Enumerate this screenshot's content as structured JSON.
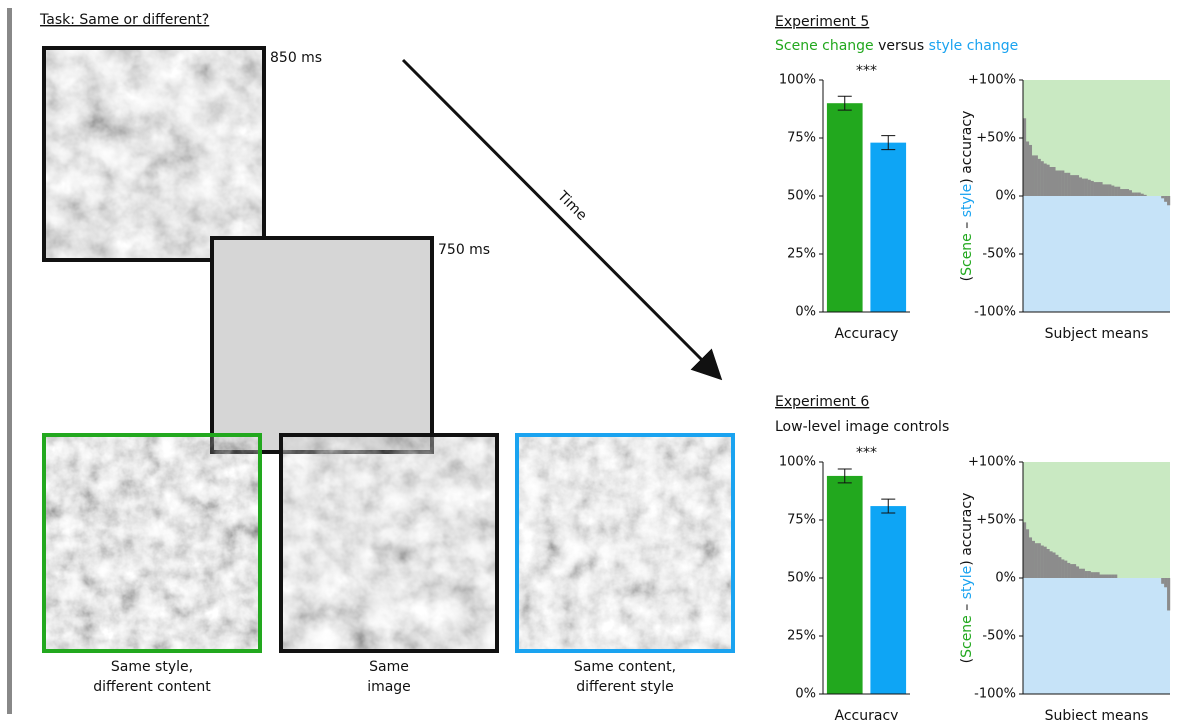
{
  "diagram": {
    "task": "Task: Same or different?",
    "durations": [
      "850 ms",
      "750 ms"
    ],
    "time_label": "Time",
    "captions": [
      [
        "Same style,",
        "different content"
      ],
      [
        "Same",
        "image"
      ],
      [
        "Same content,",
        "different style"
      ]
    ],
    "caption_colors": [
      "#22a81e",
      "#111111",
      "#1aa3f0"
    ]
  },
  "panels": [
    {
      "title": "Experiment 5",
      "subtitle": [
        {
          "text": "Scene change",
          "color": "#22a81e"
        },
        {
          "text": " versus ",
          "color": "#111111"
        },
        {
          "text": "style change",
          "color": "#1aa3f0"
        }
      ]
    },
    {
      "title": "Experiment 6",
      "subtitle": [
        {
          "text": "Low-level image controls",
          "color": "#111111"
        }
      ]
    }
  ],
  "chart_data": [
    {
      "type": "bar",
      "xlabel": "Accuracy",
      "annotation": "***",
      "categories": [
        null,
        null
      ],
      "values": [
        90,
        73
      ],
      "errors": [
        3,
        3
      ],
      "colors": [
        "#22a81e",
        "#0ea5f5"
      ],
      "ylim": [
        0,
        100
      ],
      "yticks": [
        {
          "value": 0,
          "label": "0%"
        },
        {
          "value": 25,
          "label": "25%"
        },
        {
          "value": 50,
          "label": "50%"
        },
        {
          "value": 75,
          "label": "75%"
        },
        {
          "value": 100,
          "label": "100%"
        }
      ]
    },
    {
      "type": "bar",
      "xlabel": "Subject means",
      "ylabel": [
        {
          "text": "(",
          "color": "#111111"
        },
        {
          "text": "Scene",
          "color": "#22a81e"
        },
        {
          "text": " – ",
          "color": "#111111"
        },
        {
          "text": "style",
          "color": "#1aa3f0"
        },
        {
          "text": ") accuracy",
          "color": "#111111"
        }
      ],
      "values": [
        67,
        47,
        44,
        35,
        35,
        32,
        30,
        28,
        27,
        25,
        25,
        22,
        22,
        22,
        20,
        20,
        18,
        18,
        18,
        16,
        15,
        15,
        14,
        13,
        12,
        12,
        12,
        10,
        10,
        10,
        9,
        8,
        8,
        6,
        6,
        6,
        5,
        3,
        3,
        3,
        2,
        1,
        0,
        0,
        0,
        0,
        0,
        -2,
        -5,
        -8
      ],
      "color": "#8c8c8c",
      "background_above": "#c9e9c2",
      "background_below": "#c6e3f8",
      "ylim": [
        -100,
        100
      ],
      "yticks": [
        {
          "value": -100,
          "label": "-100%"
        },
        {
          "value": -50,
          "label": "-50%"
        },
        {
          "value": 0,
          "label": "0%"
        },
        {
          "value": 50,
          "label": "+50%"
        },
        {
          "value": 100,
          "label": "+100%"
        }
      ]
    },
    {
      "type": "bar",
      "xlabel": "Accuracy",
      "annotation": "***",
      "categories": [
        null,
        null
      ],
      "values": [
        94,
        81
      ],
      "errors": [
        3,
        3
      ],
      "colors": [
        "#22a81e",
        "#0ea5f5"
      ],
      "ylim": [
        0,
        100
      ],
      "yticks": [
        {
          "value": 0,
          "label": "0%"
        },
        {
          "value": 25,
          "label": "25%"
        },
        {
          "value": 50,
          "label": "50%"
        },
        {
          "value": 75,
          "label": "75%"
        },
        {
          "value": 100,
          "label": "100%"
        }
      ]
    },
    {
      "type": "bar",
      "xlabel": "Subject means",
      "ylabel": [
        {
          "text": "(",
          "color": "#111111"
        },
        {
          "text": "Scene",
          "color": "#22a81e"
        },
        {
          "text": " – ",
          "color": "#111111"
        },
        {
          "text": "style",
          "color": "#1aa3f0"
        },
        {
          "text": ") accuracy",
          "color": "#111111"
        }
      ],
      "values": [
        48,
        42,
        35,
        32,
        30,
        30,
        28,
        27,
        25,
        23,
        22,
        20,
        18,
        16,
        15,
        13,
        12,
        12,
        10,
        8,
        8,
        6,
        6,
        5,
        5,
        5,
        3,
        3,
        3,
        3,
        3,
        3,
        0,
        0,
        0,
        0,
        0,
        0,
        0,
        0,
        0,
        0,
        0,
        0,
        0,
        0,
        0,
        -5,
        -8,
        -28
      ],
      "color": "#8c8c8c",
      "background_above": "#c9e9c2",
      "background_below": "#c6e3f8",
      "ylim": [
        -100,
        100
      ],
      "yticks": [
        {
          "value": -100,
          "label": "-100%"
        },
        {
          "value": -50,
          "label": "-50%"
        },
        {
          "value": 0,
          "label": "0%"
        },
        {
          "value": 50,
          "label": "+50%"
        },
        {
          "value": 100,
          "label": "+100%"
        }
      ]
    }
  ]
}
